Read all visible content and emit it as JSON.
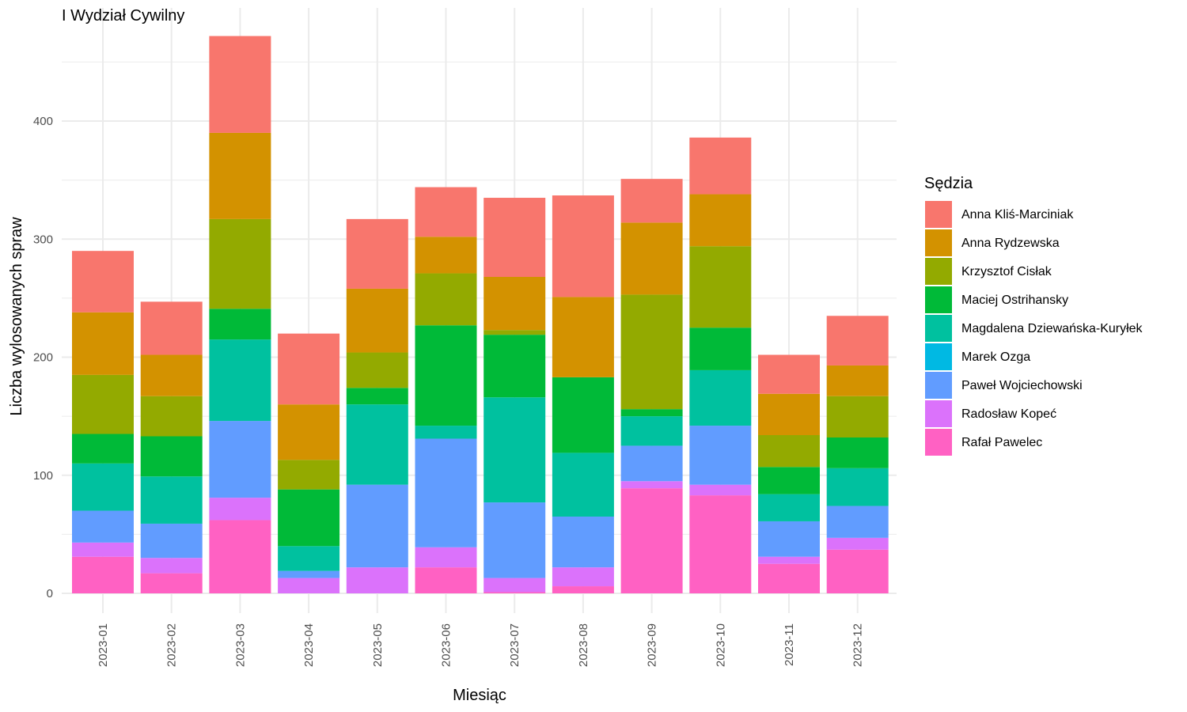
{
  "chart_data": {
    "type": "bar",
    "stacked": true,
    "title": "I Wydział Cywilny",
    "xlabel": "Miesiąc",
    "ylabel": "Liczba wylosowanych spraw",
    "ylim": [
      0,
      490
    ],
    "yticks": [
      0,
      100,
      200,
      300,
      400
    ],
    "grid": true,
    "legend_title": "Sędzia",
    "legend_position": "right",
    "categories": [
      "2023-01",
      "2023-02",
      "2023-03",
      "2023-04",
      "2023-05",
      "2023-06",
      "2023-07",
      "2023-08",
      "2023-09",
      "2023-10",
      "2023-11",
      "2023-12"
    ],
    "series": [
      {
        "name": "Anna Kliś-Marciniak",
        "color": "#F8766D",
        "values": [
          52,
          45,
          82,
          60,
          59,
          42,
          67,
          86,
          37,
          48,
          33,
          42
        ]
      },
      {
        "name": "Anna Rydzewska",
        "color": "#D39200",
        "values": [
          53,
          35,
          73,
          47,
          54,
          31,
          45,
          68,
          61,
          44,
          35,
          26
        ]
      },
      {
        "name": "Krzysztof Cisłak",
        "color": "#93AA00",
        "values": [
          50,
          34,
          76,
          25,
          30,
          44,
          4,
          0,
          97,
          69,
          27,
          35
        ]
      },
      {
        "name": "Maciej Ostrihansky",
        "color": "#00BA38",
        "values": [
          25,
          34,
          26,
          48,
          14,
          85,
          53,
          64,
          6,
          36,
          23,
          26
        ]
      },
      {
        "name": "Magdalena Dziewańska-Kuryłek",
        "color": "#00C19F",
        "values": [
          40,
          40,
          69,
          21,
          68,
          11,
          89,
          54,
          25,
          47,
          23,
          32
        ]
      },
      {
        "name": "Marek Ozga",
        "color": "#00B9E3",
        "values": [
          0,
          0,
          0,
          0,
          0,
          0,
          0,
          0,
          0,
          0,
          0,
          0
        ]
      },
      {
        "name": "Paweł Wojciechowski",
        "color": "#619CFF",
        "values": [
          27,
          29,
          65,
          6,
          70,
          92,
          64,
          43,
          30,
          50,
          30,
          27
        ]
      },
      {
        "name": "Radosław Kopeć",
        "color": "#DB72FB",
        "values": [
          12,
          13,
          19,
          13,
          22,
          17,
          12,
          16,
          6,
          9,
          6,
          10
        ]
      },
      {
        "name": "Rafał Pawelec",
        "color": "#FF61C3",
        "values": [
          31,
          17,
          62,
          0,
          0,
          22,
          1,
          6,
          89,
          83,
          25,
          37
        ]
      }
    ]
  }
}
